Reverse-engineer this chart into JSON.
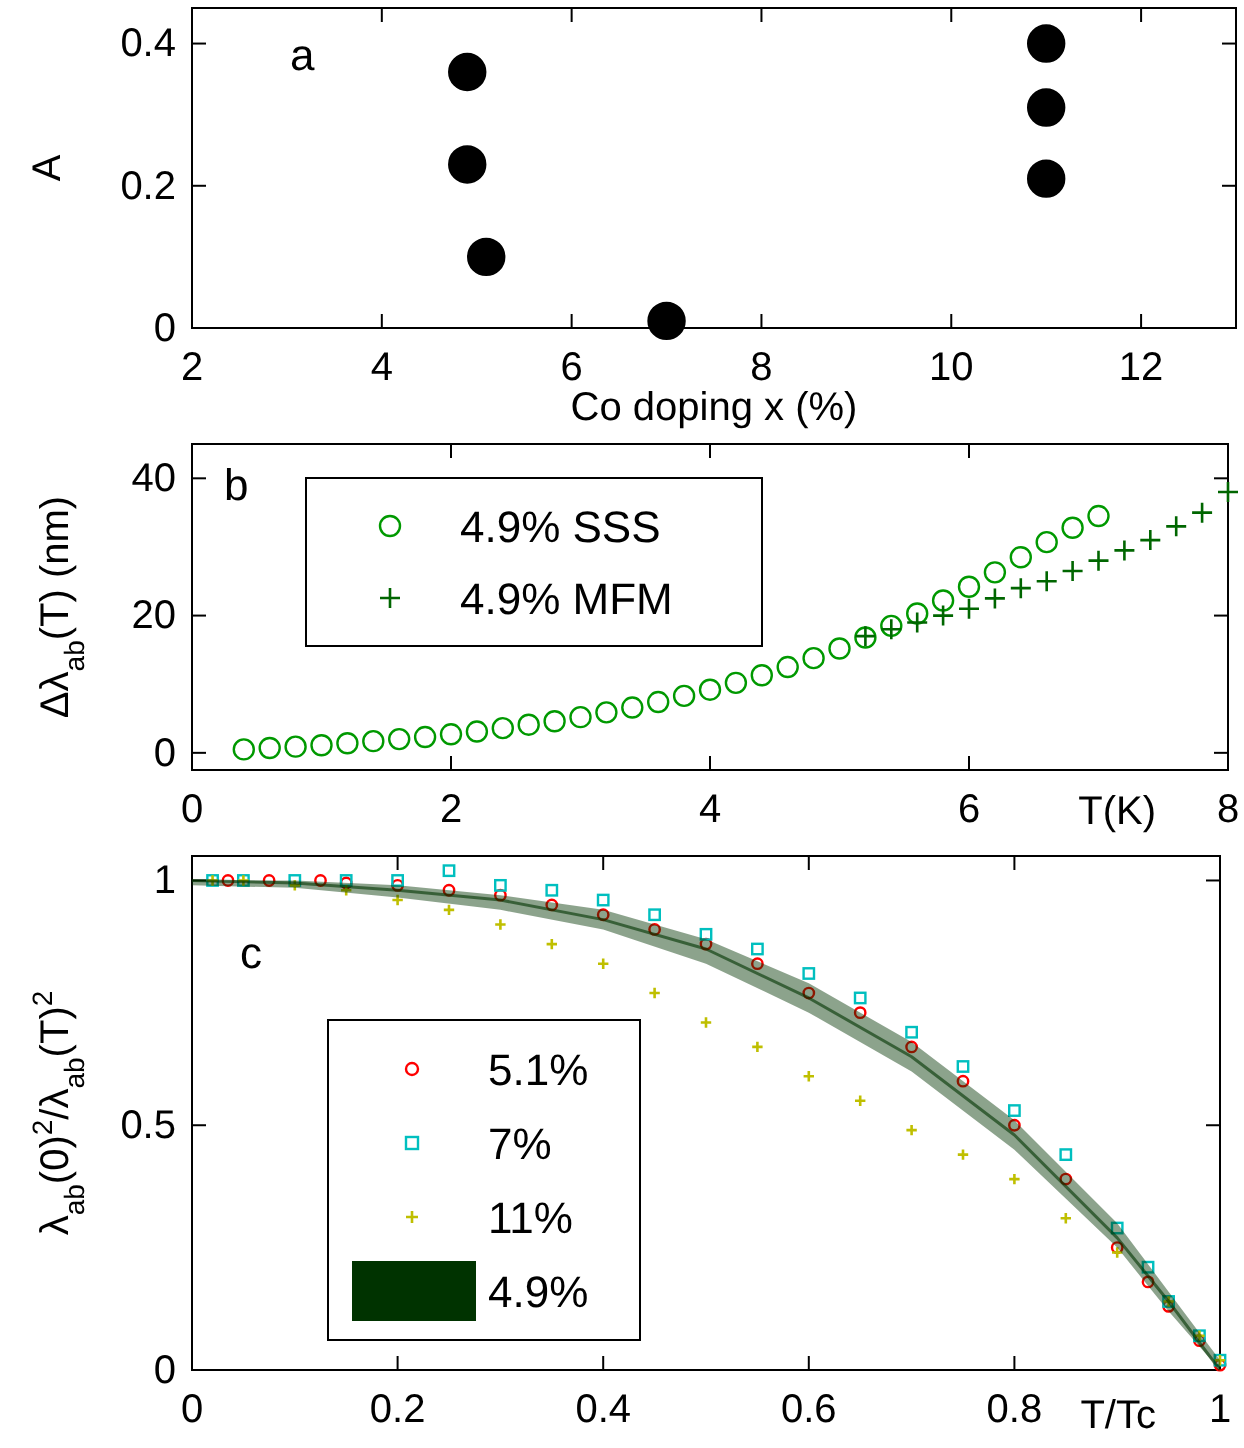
{
  "chart_data": [
    {
      "type": "scatter",
      "xlabel": "Co doping x (%)",
      "ylabel": "A",
      "annotations": [
        "a"
      ],
      "xlim": [
        2,
        13
      ],
      "ylim": [
        0,
        0.45
      ],
      "xticks": [
        2,
        4,
        6,
        8,
        10,
        12
      ],
      "yticks": [
        0,
        0.2,
        0.4
      ],
      "marker": "circle",
      "legend": false,
      "series": [
        {
          "color": "#000000",
          "x": [
            4.9,
            4.9,
            5.1,
            7,
            11,
            11,
            11
          ],
          "values": [
            0.36,
            0.23,
            0.1,
            0.01,
            0.4,
            0.31,
            0.21
          ]
        }
      ]
    },
    {
      "type": "scatter",
      "xlabel": "T(K)",
      "ylabel": "Δλ$_{ab}$(T) (nm)",
      "annotations": [
        "b"
      ],
      "xlim": [
        0,
        8
      ],
      "ylim": [
        -2.5,
        45
      ],
      "xticks": [
        0,
        2,
        4,
        6,
        8
      ],
      "yticks": [
        0,
        20,
        40
      ],
      "legend": "top left",
      "series": [
        {
          "name": "4.9% SSS",
          "color": "#009900",
          "marker": "circle",
          "x": [
            0.4,
            0.6,
            0.8,
            1.0,
            1.2,
            1.4,
            1.6,
            1.8,
            2.0,
            2.2,
            2.4,
            2.6,
            2.8,
            3.0,
            3.2,
            3.4,
            3.6,
            3.8,
            4.0,
            4.2,
            4.4,
            4.6,
            4.8,
            5.0,
            5.2,
            5.4,
            5.6,
            5.8,
            6.0,
            6.2,
            6.4,
            6.6,
            6.8,
            7.0
          ],
          "values": [
            0.5,
            0.7,
            0.9,
            1.1,
            1.4,
            1.7,
            2.0,
            2.3,
            2.7,
            3.1,
            3.6,
            4.1,
            4.6,
            5.2,
            5.9,
            6.6,
            7.4,
            8.3,
            9.2,
            10.2,
            11.3,
            12.5,
            13.8,
            15.2,
            16.8,
            18.5,
            20.3,
            22.2,
            24.2,
            26.3,
            28.5,
            30.7,
            32.8,
            34.5
          ]
        },
        {
          "name": "4.9% MFM",
          "color": "#006600",
          "marker": "cross",
          "x": [
            5.2,
            5.4,
            5.6,
            5.8,
            6.0,
            6.2,
            6.4,
            6.6,
            6.8,
            7.0,
            7.2,
            7.4,
            7.6,
            7.8,
            8.0
          ],
          "values": [
            17,
            18,
            19,
            20,
            21,
            22.5,
            24,
            25,
            26.5,
            28,
            29.5,
            31,
            33,
            35,
            38
          ]
        }
      ]
    },
    {
      "type": "scatter",
      "xlabel": "T/Tc",
      "ylabel": "λ$_{ab}$(0)$^{2}$/λ$_{ab}$(T)$^{2}$",
      "annotations": [
        "c"
      ],
      "xlim": [
        0,
        1
      ],
      "ylim": [
        0,
        1.05
      ],
      "xticks": [
        0,
        0.2,
        0.4,
        0.6,
        0.8,
        1
      ],
      "yticks": [
        0,
        0.5,
        1
      ],
      "legend": "bottom left",
      "series": [
        {
          "name": "5.1%",
          "color": "#ff0000",
          "marker": "circle",
          "x": [
            0.035,
            0.075,
            0.125,
            0.15,
            0.2,
            0.25,
            0.3,
            0.35,
            0.4,
            0.45,
            0.5,
            0.55,
            0.6,
            0.65,
            0.7,
            0.75,
            0.8,
            0.85,
            0.9,
            0.93,
            0.95,
            0.98,
            1.0
          ],
          "values": [
            1,
            1,
            1,
            0.995,
            0.99,
            0.98,
            0.97,
            0.95,
            0.93,
            0.9,
            0.87,
            0.83,
            0.77,
            0.73,
            0.66,
            0.59,
            0.5,
            0.39,
            0.25,
            0.18,
            0.13,
            0.06,
            0.01
          ]
        },
        {
          "name": "7%",
          "color": "#00bfbf",
          "marker": "square",
          "x": [
            0.02,
            0.05,
            0.1,
            0.15,
            0.2,
            0.25,
            0.3,
            0.35,
            0.4,
            0.45,
            0.5,
            0.55,
            0.6,
            0.65,
            0.7,
            0.75,
            0.8,
            0.85,
            0.9,
            0.93,
            0.95,
            0.98,
            1.0
          ],
          "values": [
            1,
            1,
            1,
            1,
            1,
            1.02,
            0.99,
            0.98,
            0.96,
            0.93,
            0.89,
            0.86,
            0.81,
            0.76,
            0.69,
            0.62,
            0.53,
            0.44,
            0.29,
            0.21,
            0.14,
            0.07,
            0.02
          ]
        },
        {
          "name": "11%",
          "color": "#bfbf00",
          "marker": "cross",
          "x": [
            0.02,
            0.05,
            0.1,
            0.15,
            0.2,
            0.25,
            0.3,
            0.35,
            0.4,
            0.45,
            0.5,
            0.55,
            0.6,
            0.65,
            0.7,
            0.75,
            0.8,
            0.85,
            0.9,
            0.95,
            0.98,
            1.0
          ],
          "values": [
            1,
            1,
            0.99,
            0.98,
            0.96,
            0.94,
            0.91,
            0.87,
            0.83,
            0.77,
            0.71,
            0.66,
            0.6,
            0.55,
            0.49,
            0.44,
            0.39,
            0.31,
            0.24,
            0.14,
            0.07,
            0.02
          ]
        },
        {
          "name": "4.9%",
          "color": "#003300",
          "type": "line",
          "x": [
            0,
            0.1,
            0.2,
            0.3,
            0.4,
            0.5,
            0.6,
            0.7,
            0.8,
            0.9,
            0.95,
            1.0
          ],
          "values": [
            1,
            0.995,
            0.98,
            0.96,
            0.92,
            0.86,
            0.76,
            0.64,
            0.48,
            0.27,
            0.14,
            0
          ],
          "lower": [
            0.99,
            0.985,
            0.965,
            0.94,
            0.9,
            0.83,
            0.73,
            0.61,
            0.45,
            0.25,
            0.12,
            0
          ],
          "upper": [
            1,
            1,
            0.99,
            0.97,
            0.94,
            0.88,
            0.79,
            0.67,
            0.51,
            0.3,
            0.16,
            0.02
          ]
        }
      ]
    }
  ]
}
